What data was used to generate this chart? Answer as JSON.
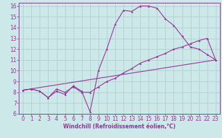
{
  "bg_color": "#cce8e8",
  "line_color": "#993399",
  "grid_color": "#aacccc",
  "xlabel": "Windchill (Refroidissement éolien,°C)",
  "xlabel_color": "#993399",
  "xtick_color": "#993399",
  "ytick_color": "#993399",
  "xlim": [
    -0.5,
    23.5
  ],
  "ylim": [
    6,
    16.3
  ],
  "yticks": [
    6,
    7,
    8,
    9,
    10,
    11,
    12,
    13,
    14,
    15,
    16
  ],
  "xticks": [
    0,
    1,
    2,
    3,
    4,
    5,
    6,
    7,
    8,
    9,
    10,
    11,
    12,
    13,
    14,
    15,
    16,
    17,
    18,
    19,
    20,
    21,
    22,
    23
  ],
  "line1_x": [
    0,
    1,
    2,
    3,
    4,
    5,
    6,
    7,
    8,
    9,
    10,
    11,
    12,
    13,
    14,
    15,
    16,
    17,
    18,
    19,
    20,
    21,
    22,
    23
  ],
  "line1_y": [
    8.2,
    8.3,
    8.1,
    7.5,
    8.1,
    7.8,
    8.6,
    8.1,
    6.2,
    10.0,
    12.0,
    14.3,
    15.6,
    15.5,
    16.0,
    16.0,
    15.8,
    14.8,
    14.2,
    13.2,
    12.2,
    12.0,
    11.5,
    11.0
  ],
  "line2_x": [
    0,
    1,
    2,
    3,
    4,
    5,
    6,
    7,
    8,
    9,
    10,
    11,
    12,
    13,
    14,
    15,
    16,
    17,
    18,
    19,
    20,
    21,
    22,
    23
  ],
  "line2_y": [
    8.2,
    8.3,
    8.1,
    7.5,
    8.3,
    8.0,
    8.5,
    8.0,
    8.0,
    8.5,
    9.0,
    9.3,
    9.8,
    10.2,
    10.7,
    11.0,
    11.3,
    11.6,
    12.0,
    12.2,
    12.5,
    12.8,
    13.0,
    11.0
  ],
  "line3_x": [
    0,
    23
  ],
  "line3_y": [
    8.2,
    11.0
  ],
  "lw": 0.8,
  "ms": 1.8,
  "tick_fontsize": 5.5,
  "xlabel_fontsize": 5.5
}
